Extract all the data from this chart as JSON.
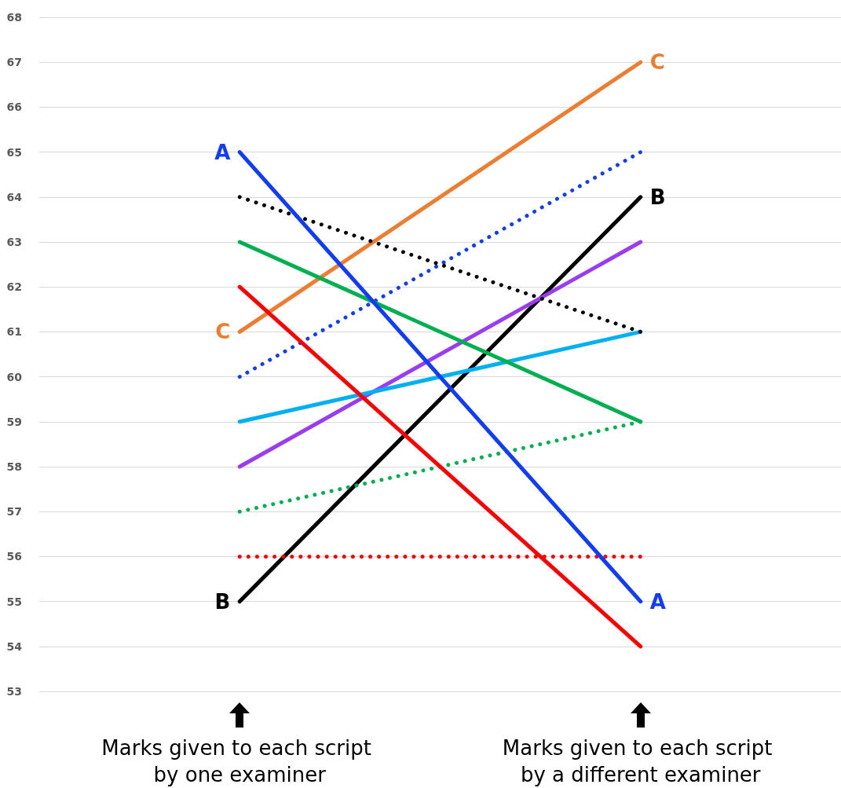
{
  "chart_data": {
    "type": "line",
    "categories": [
      "Marks given to each script by one examiner",
      "Marks given to each script by a different examiner"
    ],
    "series": [
      {
        "name": "C",
        "color": "#ed7d31",
        "values": [
          61,
          67
        ],
        "line_style": "solid"
      },
      {
        "color": "#0f3cff",
        "values": [
          60,
          65
        ],
        "line_style": "dotted"
      },
      {
        "name": "B",
        "color": "#000000",
        "values": [
          55,
          64
        ],
        "line_style": "solid"
      },
      {
        "color": "#9b3cf5",
        "values": [
          58,
          63
        ],
        "line_style": "solid"
      },
      {
        "color": "#00b0f0",
        "values": [
          59,
          61
        ],
        "line_style": "solid"
      },
      {
        "color": "#000000",
        "values": [
          64,
          61
        ],
        "line_style": "dotted"
      },
      {
        "color": "#00b050",
        "values": [
          63,
          59
        ],
        "line_style": "solid"
      },
      {
        "color": "#00b050",
        "values": [
          57,
          59
        ],
        "line_style": "dotted"
      },
      {
        "color": "#ff0000",
        "values": [
          56,
          56
        ],
        "line_style": "dotted"
      },
      {
        "name": "A",
        "color": "#0f3cff",
        "values": [
          65,
          55
        ],
        "line_style": "solid"
      },
      {
        "color": "#ff0000",
        "values": [
          62,
          54
        ],
        "line_style": "solid"
      }
    ],
    "ylim": [
      53,
      68
    ],
    "yticks": [
      53,
      54,
      55,
      56,
      57,
      58,
      59,
      60,
      61,
      62,
      63,
      64,
      65,
      66,
      67,
      68
    ],
    "grid": "y",
    "marker": "none"
  }
}
